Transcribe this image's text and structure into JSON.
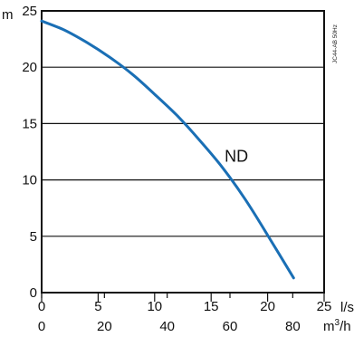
{
  "chart_data": {
    "type": "line",
    "title": "",
    "ylabel": "m",
    "xlabel": "l/s",
    "x2label_base": "m",
    "x2label_exp": "3",
    "x2label_tail": "/h",
    "ylim": [
      0,
      25
    ],
    "xlim": [
      0,
      25
    ],
    "x2lim": [
      0,
      90
    ],
    "grid": true,
    "y_ticks": [
      "0",
      "5",
      "10",
      "15",
      "20",
      "25"
    ],
    "x_ticks": [
      "0",
      "5",
      "10",
      "15",
      "20",
      "25"
    ],
    "x2_ticks": [
      "0",
      "20",
      "40",
      "60",
      "80"
    ],
    "annotation": "JC44-AB 50Hz",
    "series": [
      {
        "name": "ND",
        "color": "#1a6fb5",
        "x": [
          0,
          2,
          4,
          6,
          8,
          10,
          12,
          14,
          16,
          18,
          20,
          22.3
        ],
        "y": [
          24.1,
          23.3,
          22.2,
          20.9,
          19.4,
          17.6,
          15.7,
          13.5,
          11.1,
          8.3,
          5.1,
          1.3
        ]
      }
    ]
  }
}
